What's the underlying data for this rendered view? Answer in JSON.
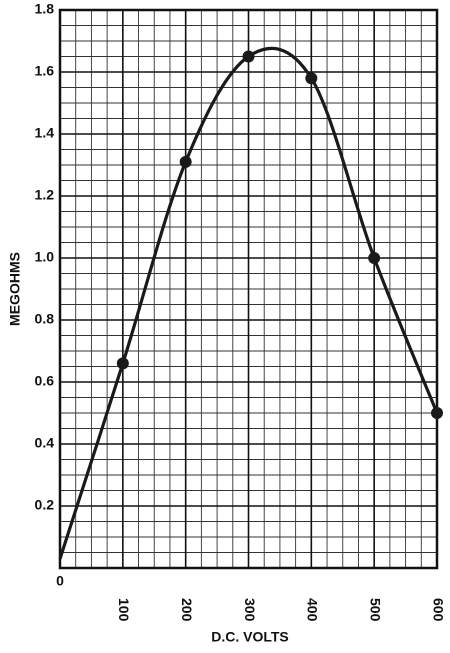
{
  "chart_data": {
    "type": "line",
    "x_label": "D.C. VOLTS",
    "y_label": "MEGOHMS",
    "x": [
      0,
      100,
      200,
      300,
      400,
      500,
      600
    ],
    "series": [
      {
        "color": "#1a1a1a",
        "values": [
          0.03,
          0.66,
          1.31,
          1.65,
          1.58,
          1.0,
          0.5
        ]
      }
    ],
    "xlim": [
      0,
      600
    ],
    "ylim": [
      0,
      1.8
    ],
    "xticks": [
      0,
      100,
      200,
      300,
      400,
      500,
      600
    ],
    "yticks": [
      0.2,
      0.4,
      0.6,
      0.8,
      {
        "value": 1,
        "label": "1.0"
      },
      1.2,
      1.4,
      1.6,
      1.8
    ],
    "grid": true
  }
}
